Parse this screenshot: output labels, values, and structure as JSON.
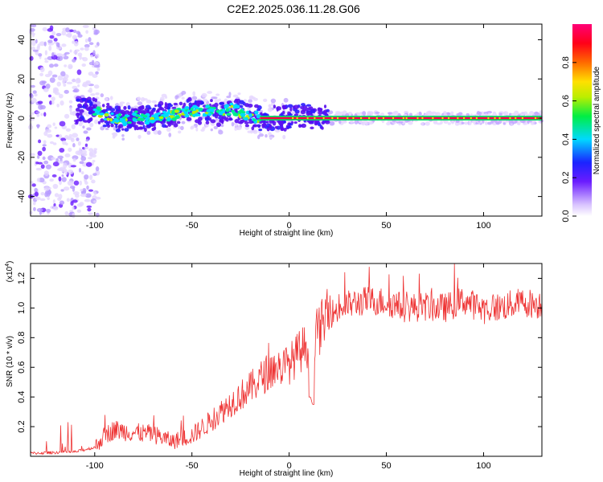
{
  "title": "C2E2.2025.036.11.28.G06",
  "chart_data": [
    {
      "type": "heatmap",
      "name": "spectrogram",
      "xlabel": "Height of straight line (km)",
      "ylabel": "Frequency (Hz)",
      "xlim": [
        -133,
        130
      ],
      "ylim": [
        -50,
        48
      ],
      "xticks": [
        -100,
        -50,
        0,
        50,
        100
      ],
      "xtick_labels": [
        "-100",
        "-50",
        "0",
        "50",
        "100"
      ],
      "yticks": [
        -40,
        -20,
        0,
        20,
        40
      ],
      "ytick_labels": [
        "-40",
        "-20",
        "0",
        "20",
        "40"
      ],
      "ridge": {
        "x": [
          -100,
          -95,
          -90,
          -85,
          -80,
          -75,
          -70,
          -65,
          -60,
          -55,
          -50,
          -45,
          -40,
          -35,
          -30,
          -25,
          -20,
          -15,
          -10,
          -5,
          0,
          5,
          10,
          20,
          40,
          60,
          80,
          100,
          120,
          130
        ],
        "y": [
          4,
          2,
          0,
          -1,
          1,
          0,
          0,
          2,
          1,
          3,
          4,
          3,
          4,
          2,
          5,
          3,
          1,
          0,
          0,
          0,
          0,
          2,
          1,
          0,
          0,
          0,
          0,
          0,
          0,
          0
        ]
      },
      "colorbar": {
        "label": "Normalized spectral amplitude",
        "range": [
          0,
          1
        ],
        "ticks": [
          0.0,
          0.2,
          0.4,
          0.6,
          0.8
        ],
        "tick_labels": [
          "0.0",
          "0.2",
          "0.4",
          "0.6",
          "0.8"
        ]
      }
    },
    {
      "type": "line",
      "name": "snr",
      "xlabel": "Height of straight line (km)",
      "ylabel": "SNR (10 * v/v)",
      "scale_label": "(x10",
      "scale_exp": "4",
      "xlim": [
        -133,
        130
      ],
      "ylim": [
        0.0,
        1.3
      ],
      "xticks": [
        -100,
        -50,
        0,
        50,
        100
      ],
      "xtick_labels": [
        "-100",
        "-50",
        "0",
        "50",
        "100"
      ],
      "yticks": [
        0.2,
        0.4,
        0.6,
        0.8,
        1.0,
        1.2
      ],
      "ytick_labels": [
        "0.2",
        "0.4",
        "0.6",
        "0.8",
        "1.0",
        "1.2"
      ],
      "color": "#ee3333",
      "envelope": {
        "x": [
          -133,
          -110,
          -100,
          -95,
          -90,
          -80,
          -70,
          -60,
          -50,
          -40,
          -30,
          -20,
          -10,
          0,
          5,
          10,
          15,
          20,
          30,
          40,
          50,
          60,
          70,
          80,
          90,
          100,
          110,
          120,
          130
        ],
        "y": [
          0.02,
          0.03,
          0.06,
          0.14,
          0.18,
          0.16,
          0.15,
          0.1,
          0.14,
          0.24,
          0.36,
          0.46,
          0.58,
          0.62,
          0.7,
          0.76,
          0.84,
          0.95,
          1.02,
          1.05,
          1.04,
          1.0,
          1.01,
          1.0,
          1.05,
          0.99,
          1.01,
          1.04,
          1.02
        ]
      },
      "dips": {
        "x": [
          11,
          12
        ],
        "y": [
          0.4,
          0.35
        ]
      }
    }
  ]
}
